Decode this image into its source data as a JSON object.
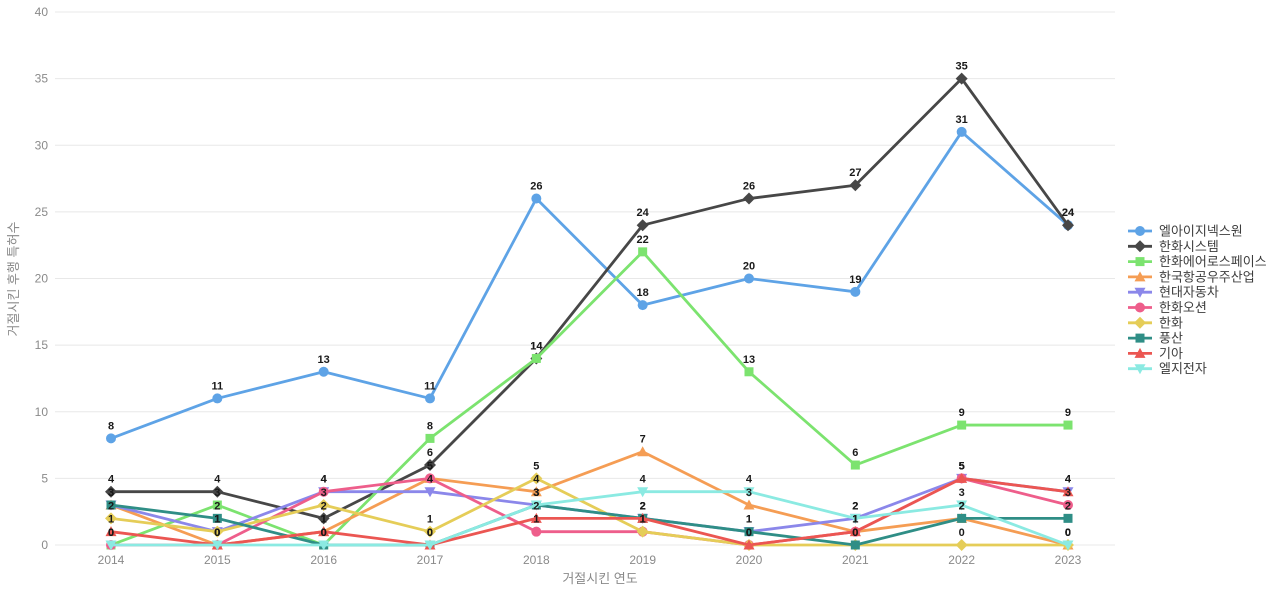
{
  "chart_data": {
    "type": "line",
    "title": "",
    "xlabel": "거절시킨 연도",
    "ylabel": "거절시킨 후행 특허수",
    "x": [
      2014,
      2015,
      2016,
      2017,
      2018,
      2019,
      2020,
      2021,
      2022,
      2023
    ],
    "ylim": [
      0,
      40
    ],
    "yticks": [
      0,
      5,
      10,
      15,
      20,
      25,
      30,
      35,
      40
    ],
    "grid": "horizontal-only",
    "legend_position": "right",
    "point_labels_shown": true,
    "series": [
      {
        "name": "엘아이지넥스원",
        "color": "#5ea3e6",
        "marker": "circle",
        "values": [
          8,
          11,
          13,
          11,
          26,
          18,
          20,
          19,
          31,
          24
        ]
      },
      {
        "name": "한화시스템",
        "color": "#474747",
        "marker": "diamond",
        "values": [
          4,
          4,
          2,
          6,
          14,
          24,
          26,
          27,
          35,
          24
        ]
      },
      {
        "name": "한화에어로스페이스",
        "color": "#7ce36f",
        "marker": "square",
        "values": [
          0,
          3,
          0,
          8,
          14,
          22,
          13,
          6,
          9,
          9
        ]
      },
      {
        "name": "한국항공우주산업",
        "color": "#f59d54",
        "marker": "triangle-up",
        "values": [
          3,
          0,
          1,
          5,
          4,
          7,
          3,
          1,
          2,
          0
        ]
      },
      {
        "name": "현대자동차",
        "color": "#8b87ea",
        "marker": "triangle-down",
        "values": [
          3,
          1,
          4,
          4,
          3,
          2,
          1,
          2,
          5,
          4
        ]
      },
      {
        "name": "한화오션",
        "color": "#ee5e8b",
        "marker": "circle",
        "values": [
          0,
          0,
          4,
          5,
          1,
          1,
          0,
          1,
          5,
          3
        ]
      },
      {
        "name": "한화",
        "color": "#e5cd58",
        "marker": "diamond",
        "values": [
          2,
          1,
          3,
          1,
          5,
          1,
          0,
          0,
          0,
          0
        ]
      },
      {
        "name": "풍산",
        "color": "#2f8e86",
        "marker": "square",
        "values": [
          3,
          2,
          0,
          0,
          3,
          2,
          1,
          0,
          2,
          2
        ]
      },
      {
        "name": "기아",
        "color": "#eb5652",
        "marker": "triangle-up",
        "values": [
          1,
          0,
          1,
          0,
          2,
          2,
          0,
          1,
          5,
          4
        ]
      },
      {
        "name": "엘지전자",
        "color": "#8beae2",
        "marker": "triangle-down",
        "values": [
          0,
          0,
          0,
          0,
          3,
          4,
          4,
          2,
          3,
          0
        ]
      }
    ]
  }
}
